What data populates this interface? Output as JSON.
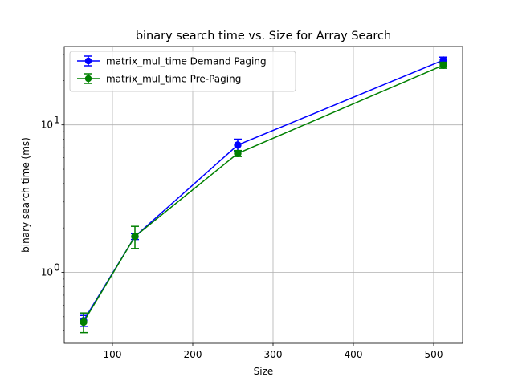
{
  "chart_data": {
    "type": "line",
    "title": "binary search time vs. Size for Array Search",
    "xlabel": "Size",
    "ylabel": "binary search time (ms)",
    "x": [
      64,
      128,
      256,
      512
    ],
    "xlim": [
      40,
      536
    ],
    "ylim": [
      0.33,
      34
    ],
    "yscale": "log",
    "grid": true,
    "legend_position": "top-left",
    "x_ticks": [
      100,
      200,
      300,
      400,
      500
    ],
    "x_tick_labels": [
      "100",
      "200",
      "300",
      "400",
      "500"
    ],
    "y_ticks": [
      1,
      10
    ],
    "y_tick_base": "10",
    "y_tick_exponents": [
      "0",
      "1"
    ],
    "series": [
      {
        "name": "matrix_mul_time Demand Paging",
        "color": "#0000ff",
        "values": [
          0.47,
          1.75,
          7.3,
          27.5
        ],
        "err_low": [
          0.04,
          0.08,
          0.7,
          1.3
        ],
        "err_high": [
          0.04,
          0.08,
          0.7,
          1.3
        ]
      },
      {
        "name": "matrix_mul_time Pre-Paging",
        "color": "#008000",
        "values": [
          0.46,
          1.75,
          6.4,
          25.4
        ],
        "err_low": [
          0.07,
          0.3,
          0.3,
          1.2
        ],
        "err_high": [
          0.07,
          0.3,
          0.3,
          1.2
        ]
      }
    ]
  }
}
